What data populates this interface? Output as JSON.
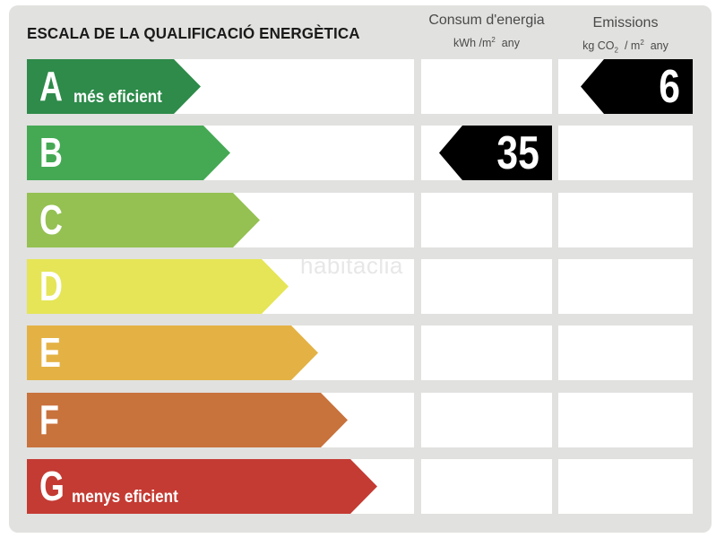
{
  "title": "ESCALA DE LA QUALIFICACIÓ ENERGÈTICA",
  "consumption_header": {
    "label": "Consum d'energia",
    "unit_prefix": "kWh /m",
    "unit_sup": "2",
    "unit_suffix": "any"
  },
  "emissions_header": {
    "label": "Emissions",
    "unit_prefix": "kg CO",
    "unit_sub": "2",
    "unit_mid": " / m",
    "unit_sup": "2",
    "unit_suffix": "any"
  },
  "classes": [
    {
      "letter": "A",
      "subtitle": "més eficient",
      "color": "#2e8b4a"
    },
    {
      "letter": "B",
      "subtitle": "",
      "color": "#45a954"
    },
    {
      "letter": "C",
      "subtitle": "",
      "color": "#94c152"
    },
    {
      "letter": "D",
      "subtitle": "",
      "color": "#e5e557"
    },
    {
      "letter": "E",
      "subtitle": "",
      "color": "#e4b244"
    },
    {
      "letter": "F",
      "subtitle": "",
      "color": "#c8723c"
    },
    {
      "letter": "G",
      "subtitle": "menys eficient",
      "color": "#c43b33"
    }
  ],
  "consumption_rating": {
    "class": "B",
    "value": "35"
  },
  "emissions_rating": {
    "class": "A",
    "value": "6"
  },
  "watermark": "habitaclia"
}
